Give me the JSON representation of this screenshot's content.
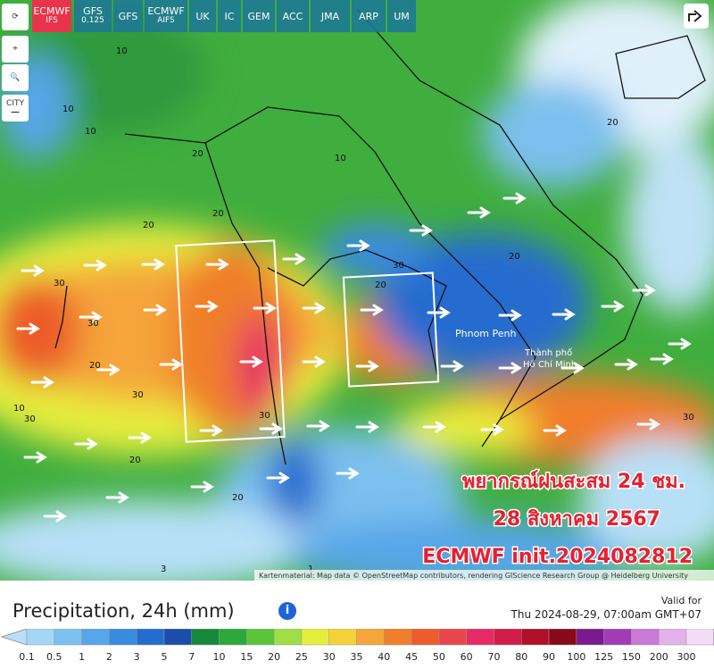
{
  "toolbar": {
    "models": [
      [
        "ECMWF",
        "IFS"
      ],
      [
        "GFS",
        "0.125"
      ],
      [
        "GFS"
      ],
      [
        "ECMWF",
        "AIFS"
      ],
      [
        "UK"
      ],
      [
        "IC"
      ],
      [
        "GEM"
      ],
      [
        "ACC"
      ],
      [
        "JMA"
      ],
      [
        "ARP"
      ],
      [
        "UM"
      ]
    ],
    "active": 0
  },
  "side": {
    "city": "CITY"
  },
  "map": {
    "places": {
      "phnom_penh": "Phnom Penh",
      "hcmc": [
        "Thành phố",
        "Hồ Chí Minh"
      ]
    },
    "contours": [
      "10",
      "10",
      "20",
      "20",
      "20",
      "30",
      "20",
      "30",
      "30",
      "30",
      "20",
      "10",
      "20",
      "30",
      "10",
      "20",
      "20",
      "30",
      "1",
      "3",
      "10",
      "20",
      "30"
    ],
    "overlay": [
      "พยากรณ์ฝนสะสม 24 ชม.",
      "28 สิงหาคม 2567",
      "ECMWF init.2024082812"
    ],
    "attribution": "Kartenmaterial: Map data © OpenStreetMap contributors, rendering GIScience Research Group @ Heidelberg University"
  },
  "legend": {
    "title": "Precipitation, 24h (mm)",
    "valid_label": "Valid for",
    "valid_time": "Thu 2024-08-29, 07:00am GMT+07",
    "ticks": [
      0.1,
      0.5,
      1,
      2,
      3,
      5,
      7,
      10,
      15,
      20,
      25,
      30,
      35,
      40,
      45,
      50,
      60,
      70,
      80,
      90,
      100,
      125,
      150,
      200,
      300
    ],
    "colors": [
      "#b7e0f7",
      "#a4d6f5",
      "#7cc0ef",
      "#56a6e9",
      "#3a8ae0",
      "#256ccf",
      "#1a4ea8",
      "#178a3a",
      "#2ea83c",
      "#5cc43a",
      "#a0de48",
      "#e6ee3c",
      "#f4d23a",
      "#f5a53a",
      "#f07e2c",
      "#ec5c2c",
      "#e8464c",
      "#e62a66",
      "#d01e48",
      "#b0102a",
      "#880a1a",
      "#7a1a8c",
      "#a23cb6",
      "#c87ad6",
      "#e2b2ea",
      "#f3dcf6",
      "#b4b4b4"
    ]
  }
}
